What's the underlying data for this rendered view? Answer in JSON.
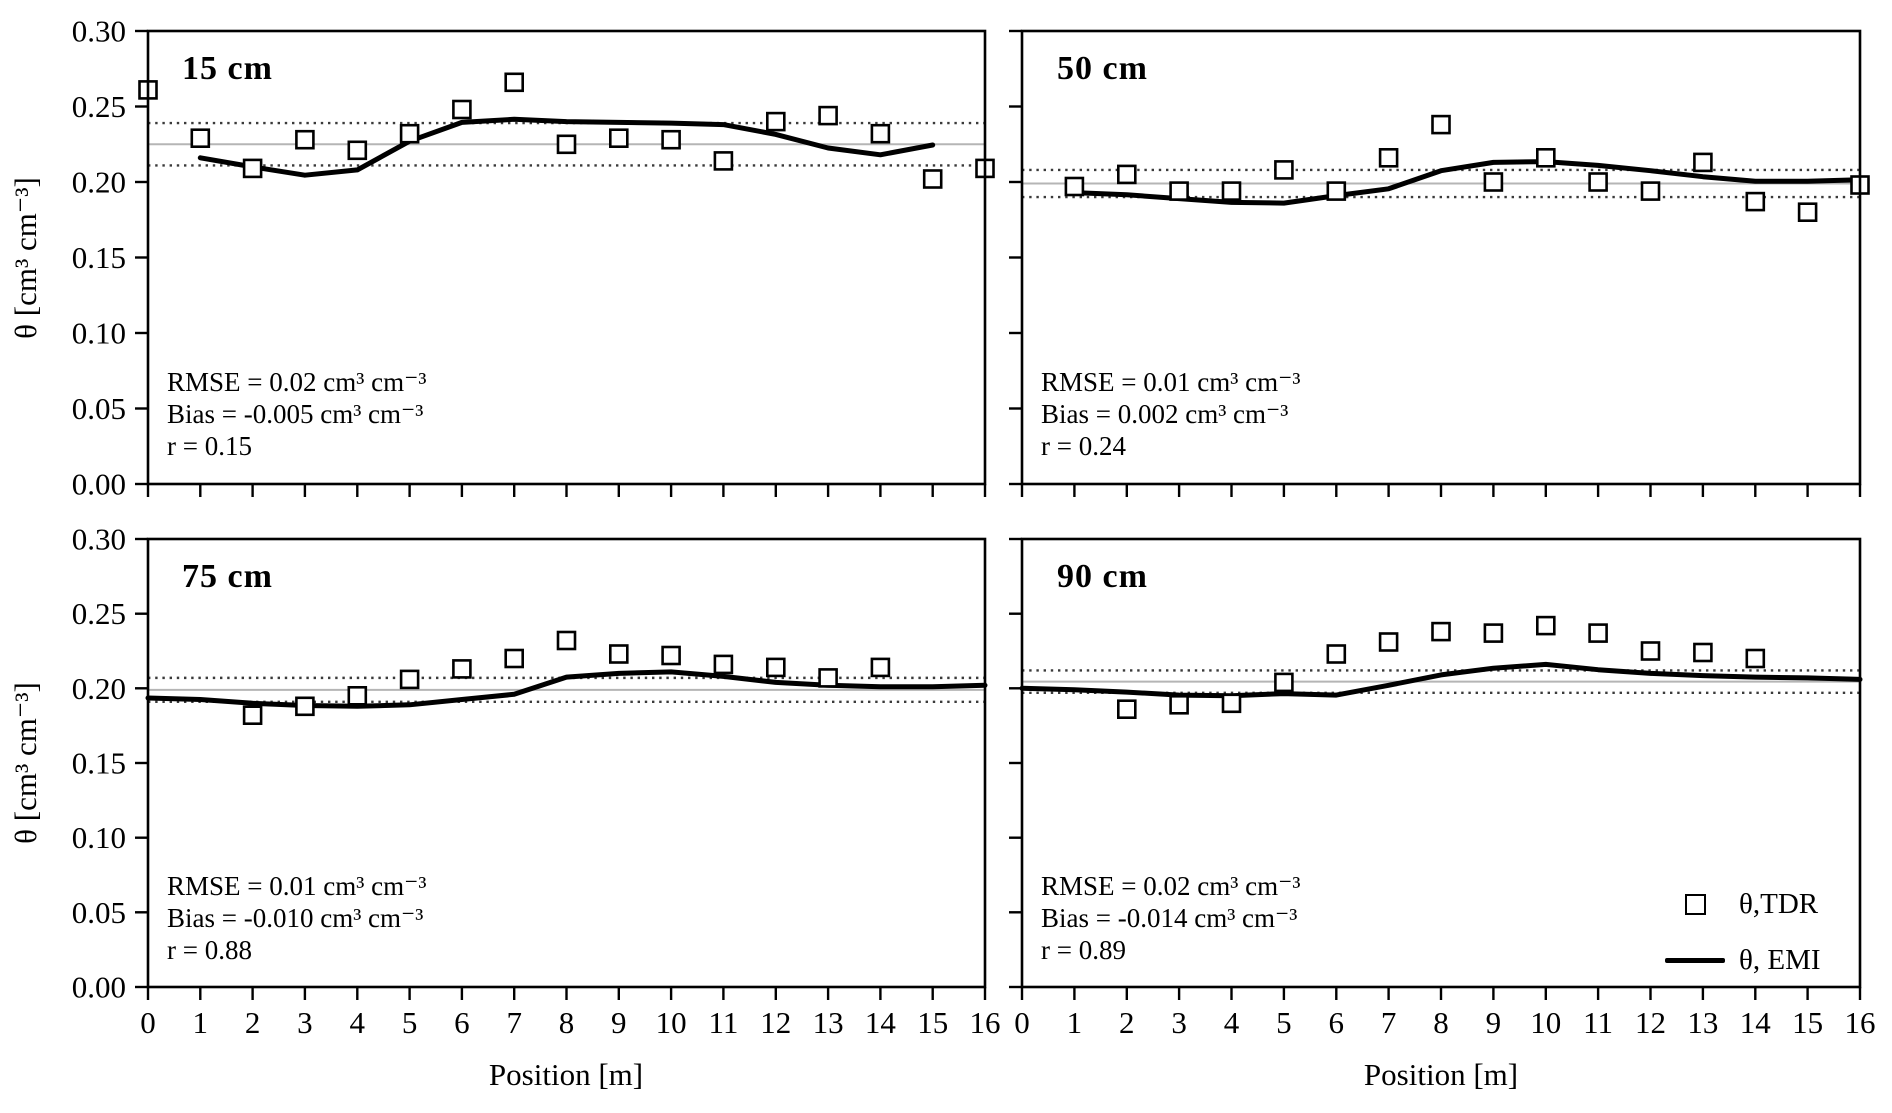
{
  "figure": {
    "y_axis": {
      "label": "θ [cm³ cm⁻³]",
      "tick_labels": [
        "0.00",
        "0.05",
        "0.10",
        "0.15",
        "0.20",
        "0.25",
        "0.30"
      ]
    },
    "x_axis": {
      "label": "Position [m]",
      "tick_labels": [
        "0",
        "1",
        "2",
        "3",
        "4",
        "5",
        "6",
        "7",
        "8",
        "9",
        "10",
        "11",
        "12",
        "13",
        "14",
        "15",
        "16"
      ]
    },
    "legend": {
      "entries": [
        {
          "marker": "open-square",
          "label": "θ,TDR"
        },
        {
          "marker": "thick-line",
          "label": "θ, EMI"
        }
      ]
    },
    "colors": {
      "series": "#000000",
      "mean_line": "#b5b5b5",
      "dotted_line": "#3a3a3a",
      "background": "#ffffff"
    }
  },
  "chart_data": [
    {
      "id": "15cm",
      "type": "scatter",
      "title": "15 cm",
      "xlabel": "Position [m]",
      "ylabel": "θ [cm³ cm⁻³]",
      "xlim": [
        0,
        16
      ],
      "ylim": [
        0,
        0.3
      ],
      "x_ticks": [
        0,
        1,
        2,
        3,
        4,
        5,
        6,
        7,
        8,
        9,
        10,
        11,
        12,
        13,
        14,
        15,
        16
      ],
      "y_ticks": [
        0,
        0.05,
        0.1,
        0.15,
        0.2,
        0.25,
        0.3
      ],
      "ref_lines": {
        "mean": 0.225,
        "upper": 0.239,
        "lower": 0.211
      },
      "annotations": [
        "RMSE = 0.02 cm³ cm⁻³",
        "Bias = -0.005 cm³ cm⁻³",
        "r = 0.15"
      ],
      "series": [
        {
          "name": "θ,TDR",
          "type": "scatter",
          "marker": "open-square",
          "x": [
            0,
            1,
            2,
            3,
            4,
            5,
            6,
            7,
            8,
            9,
            10,
            11,
            12,
            13,
            14,
            15,
            16
          ],
          "y": [
            0.261,
            0.229,
            0.209,
            0.228,
            0.221,
            0.232,
            0.248,
            0.266,
            0.225,
            0.229,
            0.228,
            0.214,
            0.24,
            0.244,
            0.232,
            0.202,
            0.209
          ]
        },
        {
          "name": "θ, EMI",
          "type": "line",
          "x": [
            1,
            2,
            3,
            4,
            5,
            6,
            7,
            8,
            9,
            10,
            11,
            12,
            13,
            14,
            15
          ],
          "y": [
            0.216,
            0.21,
            0.2045,
            0.208,
            0.227,
            0.2395,
            0.2415,
            0.24,
            0.2395,
            0.239,
            0.238,
            0.2315,
            0.2225,
            0.218,
            0.2245
          ]
        }
      ]
    },
    {
      "id": "50cm",
      "type": "scatter",
      "title": "50 cm",
      "xlabel": "Position [m]",
      "ylabel": "θ [cm³ cm⁻³]",
      "xlim": [
        0,
        16
      ],
      "ylim": [
        0,
        0.3
      ],
      "x_ticks": [
        0,
        1,
        2,
        3,
        4,
        5,
        6,
        7,
        8,
        9,
        10,
        11,
        12,
        13,
        14,
        15,
        16
      ],
      "y_ticks": [
        0,
        0.05,
        0.1,
        0.15,
        0.2,
        0.25,
        0.3
      ],
      "ref_lines": {
        "mean": 0.199,
        "upper": 0.208,
        "lower": 0.19
      },
      "annotations": [
        "RMSE = 0.01 cm³ cm⁻³",
        "Bias = 0.002 cm³ cm⁻³",
        "r = 0.24"
      ],
      "series": [
        {
          "name": "θ,TDR",
          "type": "scatter",
          "marker": "open-square",
          "x": [
            1,
            2,
            3,
            4,
            5,
            6,
            7,
            8,
            9,
            10,
            11,
            12,
            13,
            14,
            15,
            16
          ],
          "y": [
            0.197,
            0.205,
            0.194,
            0.194,
            0.208,
            0.194,
            0.216,
            0.238,
            0.2,
            0.216,
            0.2,
            0.194,
            0.213,
            0.187,
            0.18,
            0.198
          ]
        },
        {
          "name": "θ, EMI",
          "type": "line",
          "x": [
            1,
            2,
            3,
            4,
            5,
            6,
            7,
            8,
            9,
            10,
            11,
            12,
            13,
            14,
            15,
            16
          ],
          "y": [
            0.193,
            0.1915,
            0.189,
            0.1865,
            0.186,
            0.191,
            0.1955,
            0.2075,
            0.213,
            0.2135,
            0.211,
            0.2075,
            0.2035,
            0.2005,
            0.2005,
            0.2015
          ]
        }
      ]
    },
    {
      "id": "75cm",
      "type": "scatter",
      "title": "75 cm",
      "xlabel": "Position [m]",
      "ylabel": "θ [cm³ cm⁻³]",
      "xlim": [
        0,
        16
      ],
      "ylim": [
        0,
        0.3
      ],
      "x_ticks": [
        0,
        1,
        2,
        3,
        4,
        5,
        6,
        7,
        8,
        9,
        10,
        11,
        12,
        13,
        14,
        15,
        16
      ],
      "y_ticks": [
        0,
        0.05,
        0.1,
        0.15,
        0.2,
        0.25,
        0.3
      ],
      "ref_lines": {
        "mean": 0.199,
        "upper": 0.207,
        "lower": 0.191
      },
      "annotations": [
        "RMSE = 0.01 cm³ cm⁻³",
        "Bias = -0.010 cm³ cm⁻³",
        "r = 0.88"
      ],
      "series": [
        {
          "name": "θ,TDR",
          "type": "scatter",
          "marker": "open-square",
          "x": [
            2,
            3,
            4,
            5,
            6,
            7,
            8,
            9,
            10,
            11,
            12,
            13,
            14
          ],
          "y": [
            0.182,
            0.188,
            0.195,
            0.206,
            0.213,
            0.22,
            0.232,
            0.223,
            0.222,
            0.216,
            0.214,
            0.207,
            0.214
          ]
        },
        {
          "name": "θ, EMI",
          "type": "line",
          "x": [
            0,
            1,
            2,
            3,
            4,
            5,
            6,
            7,
            8,
            9,
            10,
            11,
            12,
            13,
            14,
            15,
            16
          ],
          "y": [
            0.1935,
            0.1925,
            0.19,
            0.1885,
            0.188,
            0.189,
            0.1925,
            0.196,
            0.2075,
            0.21,
            0.211,
            0.208,
            0.204,
            0.202,
            0.201,
            0.201,
            0.202
          ]
        }
      ]
    },
    {
      "id": "90cm",
      "type": "scatter",
      "title": "90 cm",
      "xlabel": "Position [m]",
      "ylabel": "θ [cm³ cm⁻³]",
      "xlim": [
        0,
        16
      ],
      "ylim": [
        0,
        0.3
      ],
      "x_ticks": [
        0,
        1,
        2,
        3,
        4,
        5,
        6,
        7,
        8,
        9,
        10,
        11,
        12,
        13,
        14,
        15,
        16
      ],
      "y_ticks": [
        0,
        0.05,
        0.1,
        0.15,
        0.2,
        0.25,
        0.3
      ],
      "ref_lines": {
        "mean": 0.2045,
        "upper": 0.212,
        "lower": 0.197
      },
      "annotations": [
        "RMSE = 0.02 cm³ cm⁻³",
        "Bias = -0.014 cm³ cm⁻³",
        "r = 0.89"
      ],
      "series": [
        {
          "name": "θ,TDR",
          "type": "scatter",
          "marker": "open-square",
          "x": [
            2,
            3,
            4,
            5,
            6,
            7,
            8,
            9,
            10,
            11,
            12,
            13,
            14
          ],
          "y": [
            0.186,
            0.189,
            0.19,
            0.204,
            0.223,
            0.231,
            0.238,
            0.237,
            0.242,
            0.237,
            0.225,
            0.224,
            0.22
          ]
        },
        {
          "name": "θ, EMI",
          "type": "line",
          "x": [
            0,
            1,
            2,
            3,
            4,
            5,
            6,
            7,
            8,
            9,
            10,
            11,
            12,
            13,
            14,
            15,
            16
          ],
          "y": [
            0.2,
            0.199,
            0.1975,
            0.1955,
            0.195,
            0.1965,
            0.1955,
            0.202,
            0.209,
            0.2135,
            0.216,
            0.2125,
            0.21,
            0.2085,
            0.2075,
            0.207,
            0.206
          ]
        }
      ]
    }
  ]
}
